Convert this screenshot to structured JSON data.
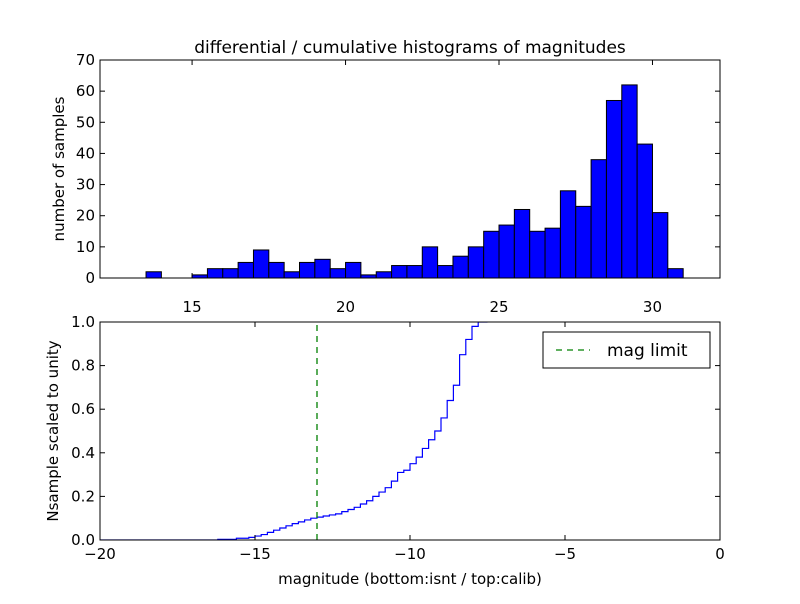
{
  "chart_data": [
    {
      "type": "bar",
      "title": "differential / cumulative histograms of magnitudes",
      "xlabel": "",
      "ylabel": "number of samples",
      "xlim": [
        12,
        32.2
      ],
      "ylim": [
        0,
        70
      ],
      "xticks": [
        15,
        20,
        25,
        30
      ],
      "xtick_labels": [
        "15",
        "20",
        "25",
        "30"
      ],
      "yticks": [
        0,
        10,
        20,
        30,
        40,
        50,
        60,
        70
      ],
      "ytick_labels": [
        "0",
        "10",
        "20",
        "30",
        "40",
        "50",
        "60",
        "70"
      ],
      "bin_edges": [
        13.5,
        14.0,
        14.5,
        15.0,
        15.5,
        16.0,
        16.5,
        17.0,
        17.5,
        18.0,
        18.5,
        19.0,
        19.5,
        20.0,
        20.5,
        21.0,
        21.5,
        22.0,
        22.5,
        23.0,
        23.5,
        24.0,
        24.5,
        25.0,
        25.5,
        26.0,
        26.5,
        27.0,
        27.5,
        28.0,
        28.5,
        29.0,
        29.5,
        30.0,
        30.5,
        31.0
      ],
      "values": [
        2,
        0,
        0,
        1,
        3,
        3,
        5,
        9,
        5,
        2,
        5,
        6,
        3,
        5,
        1,
        2,
        4,
        4,
        10,
        4,
        7,
        10,
        15,
        17,
        22,
        15,
        16,
        28,
        23,
        38,
        57,
        62,
        43,
        21,
        3
      ],
      "bar_color": "#0000ff",
      "grid": false
    },
    {
      "type": "line",
      "step": true,
      "title": "",
      "xlabel": "magnitude (bottom:isnt / top:calib)",
      "ylabel": "Nsample scaled to unity",
      "xlim": [
        -20,
        0
      ],
      "ylim": [
        0,
        1.0
      ],
      "xticks": [
        -20,
        -15,
        -10,
        -5,
        0
      ],
      "xtick_labels": [
        "−20",
        "−15",
        "−10",
        "−5",
        "0"
      ],
      "yticks": [
        0.0,
        0.2,
        0.4,
        0.6,
        0.8,
        1.0
      ],
      "ytick_labels": [
        "0.0",
        "0.2",
        "0.4",
        "0.6",
        "0.8",
        "1.0"
      ],
      "legend": {
        "location": "upper right",
        "entries": [
          "mag limit"
        ]
      },
      "series": [
        {
          "name": "",
          "color": "#0000ff",
          "x": [
            -18.4,
            -16.2,
            -15.6,
            -15.2,
            -15.0,
            -14.8,
            -14.6,
            -14.4,
            -14.2,
            -14.0,
            -13.8,
            -13.6,
            -13.4,
            -13.2,
            -13.0,
            -12.8,
            -12.6,
            -12.4,
            -12.2,
            -12.0,
            -11.8,
            -11.6,
            -11.4,
            -11.2,
            -11.0,
            -10.8,
            -10.6,
            -10.4,
            -10.2,
            -10.0,
            -9.8,
            -9.6,
            -9.4,
            -9.2,
            -9.0,
            -8.8,
            -8.6,
            -8.4,
            -8.2,
            -8.0,
            -7.8,
            -7.6,
            -7.5
          ],
          "y": [
            0.0,
            0.003,
            0.008,
            0.012,
            0.018,
            0.025,
            0.035,
            0.045,
            0.055,
            0.065,
            0.075,
            0.083,
            0.092,
            0.1,
            0.105,
            0.11,
            0.115,
            0.12,
            0.13,
            0.14,
            0.15,
            0.165,
            0.18,
            0.2,
            0.22,
            0.24,
            0.27,
            0.31,
            0.32,
            0.35,
            0.38,
            0.42,
            0.46,
            0.5,
            0.56,
            0.64,
            0.71,
            0.85,
            0.92,
            0.98,
            1.0,
            1.0,
            1.0
          ]
        },
        {
          "name": "mag limit",
          "color": "#008000",
          "dashed": true,
          "x": [
            -13.0,
            -13.0
          ],
          "y": [
            0.0,
            1.0
          ]
        }
      ]
    }
  ]
}
